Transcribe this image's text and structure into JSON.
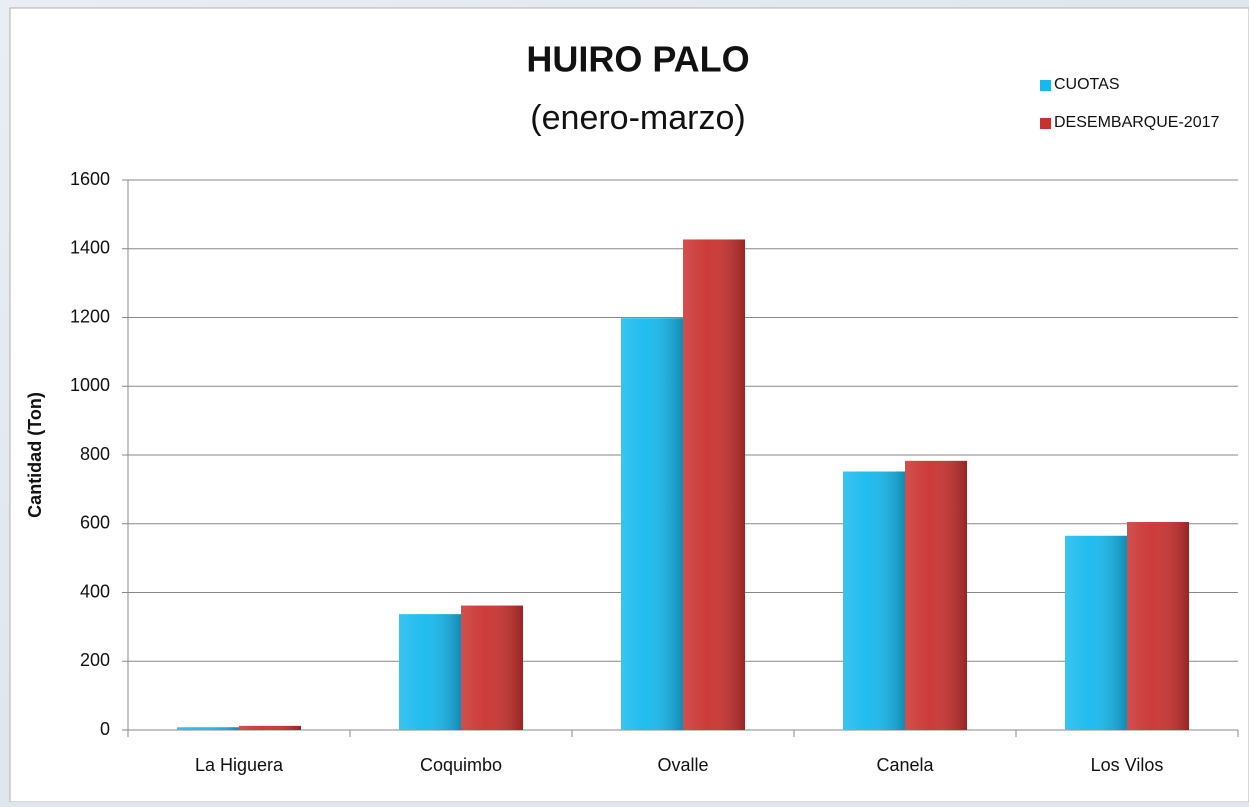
{
  "chart_data": {
    "type": "bar",
    "title": "HUIRO PALO",
    "subtitle": "(enero-marzo)",
    "y_label": "Cantidad (Ton)",
    "categories": [
      "La Higuera",
      "Coquimbo",
      "Ovalle",
      "Canela",
      "Los Vilos"
    ],
    "series": [
      {
        "name": "CUOTAS",
        "color": "#16b9ee",
        "values": [
          8,
          337,
          1198,
          752,
          565
        ]
      },
      {
        "name": "DESEMBARQUE-2017",
        "color": "#c9312f",
        "values": [
          12,
          362,
          1427,
          783,
          605
        ]
      }
    ],
    "ylim": [
      0,
      1600
    ],
    "yticks": [
      0,
      200,
      400,
      600,
      800,
      1000,
      1200,
      1400,
      1600
    ],
    "grid": true,
    "legend": "top-right"
  }
}
